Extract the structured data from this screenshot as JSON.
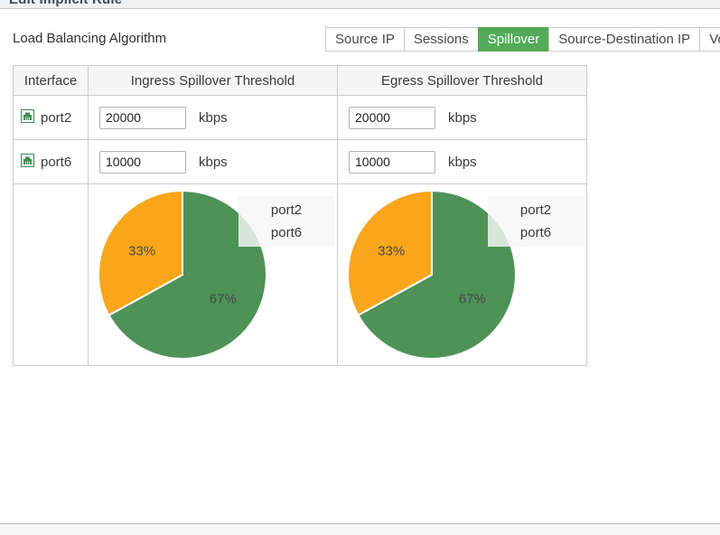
{
  "window": {
    "title": "Edit Implicit Rule"
  },
  "form": {
    "label": "Load Balancing Algorithm"
  },
  "tabs": {
    "items": [
      {
        "label": "Source IP",
        "active": false
      },
      {
        "label": "Sessions",
        "active": false
      },
      {
        "label": "Spillover",
        "active": true
      },
      {
        "label": "Source-Destination IP",
        "active": false
      },
      {
        "label": "Volume",
        "active": false
      }
    ]
  },
  "table": {
    "headers": [
      "Interface",
      "Ingress Spillover Threshold",
      "Egress Spillover Threshold"
    ],
    "unit": "kbps",
    "rows": [
      {
        "interface": "port2",
        "ingress": "20000",
        "egress": "20000"
      },
      {
        "interface": "port6",
        "ingress": "10000",
        "egress": "10000"
      }
    ]
  },
  "colors": {
    "active_tab": "#53ab59",
    "pie_green": "#4e9258",
    "pie_orange": "#f9a61a",
    "port_icon_green": "#418a58"
  },
  "chart_data": [
    {
      "type": "pie",
      "title": "Ingress Spillover Threshold",
      "labels": [
        "port2",
        "port6"
      ],
      "values": [
        67,
        33
      ],
      "colors": [
        "#4e9258",
        "#f9a61a"
      ],
      "data_labels": [
        "67%",
        "33%"
      ],
      "legend": [
        "port2",
        "port6"
      ],
      "legend_position": "top-right"
    },
    {
      "type": "pie",
      "title": "Egress Spillover Threshold",
      "labels": [
        "port2",
        "port6"
      ],
      "values": [
        67,
        33
      ],
      "colors": [
        "#4e9258",
        "#f9a61a"
      ],
      "data_labels": [
        "67%",
        "33%"
      ],
      "legend": [
        "port2",
        "port6"
      ],
      "legend_position": "top-right"
    }
  ]
}
